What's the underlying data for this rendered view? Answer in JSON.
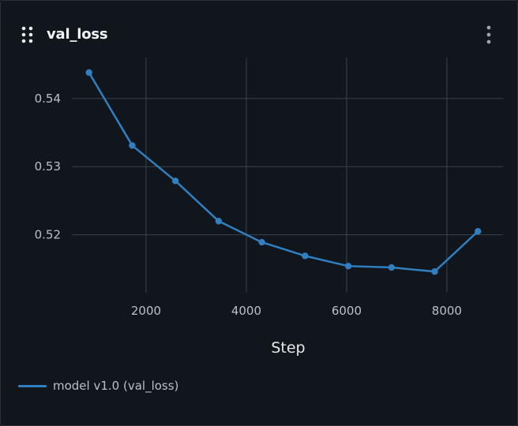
{
  "panel": {
    "title": "val_loss",
    "drag_icon": "drag-handle-icon",
    "menu_icon": "kebab-menu-icon"
  },
  "colors": {
    "background": "#11161d",
    "grid": "#3a424d",
    "series": "#2f7fc1",
    "tick_text": "#b9c0ca",
    "axis_title": "#e6e9ee"
  },
  "chart_data": {
    "type": "line",
    "xlabel": "Step",
    "ylabel": "",
    "xlim": [
      520,
      9120
    ],
    "ylim": [
      0.5115,
      0.546
    ],
    "xticks": [
      2000,
      4000,
      6000,
      8000
    ],
    "xtick_labels": [
      "2000",
      "4000",
      "6000",
      "8000"
    ],
    "yticks": [
      0.52,
      0.53,
      0.54
    ],
    "ytick_labels": [
      "0.52",
      "0.53",
      "0.54"
    ],
    "grid": true,
    "legend_position": "bottom-left",
    "series": [
      {
        "name": "model v1.0 (val_loss)",
        "x": [
          862,
          1724,
          2586,
          3448,
          4310,
          5172,
          6034,
          6896,
          7758,
          8620
        ],
        "y": [
          0.5438,
          0.5331,
          0.5279,
          0.522,
          0.5189,
          0.5169,
          0.5154,
          0.5152,
          0.5146,
          0.5205
        ]
      }
    ]
  }
}
